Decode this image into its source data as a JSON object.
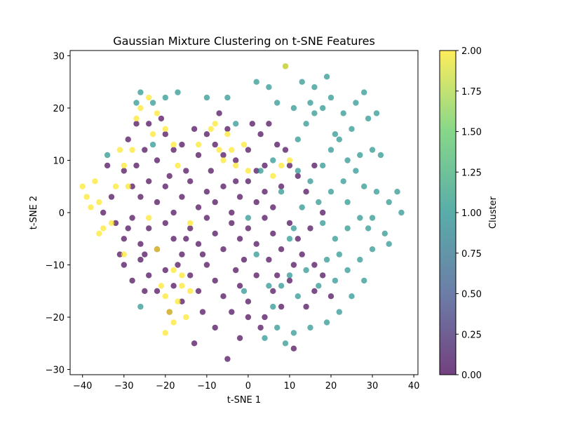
{
  "chart_data": {
    "type": "scatter",
    "title": "Gaussian Mixture Clustering on t-SNE Features",
    "xlabel": "t-SNE 1",
    "ylabel": "t-SNE 2",
    "xlim": [
      -43,
      41
    ],
    "ylim": [
      -31,
      31
    ],
    "xticks": [
      -40,
      -30,
      -20,
      -10,
      0,
      10,
      20,
      30,
      40
    ],
    "yticks": [
      -30,
      -20,
      -10,
      0,
      10,
      20,
      30
    ],
    "grid": false,
    "point_alpha": 0.7,
    "colorbar": {
      "label": "Cluster",
      "range": [
        0.0,
        2.0
      ],
      "ticks": [
        "0.00",
        "0.25",
        "0.50",
        "0.75",
        "1.00",
        "1.25",
        "1.50",
        "1.75",
        "2.00"
      ],
      "colormap": "viridis",
      "stops": [
        "#440154",
        "#3b528b",
        "#21918c",
        "#5ec962",
        "#fde725"
      ]
    },
    "series": [
      {
        "cluster": 0,
        "color": "#440154",
        "points": [
          [
            -29,
            14
          ],
          [
            -27,
            17
          ],
          [
            -25,
            12
          ],
          [
            -22,
            10
          ],
          [
            -20,
            15
          ],
          [
            -18,
            12
          ],
          [
            -15,
            8
          ],
          [
            -12,
            11
          ],
          [
            -10,
            15
          ],
          [
            -8,
            13
          ],
          [
            -5,
            16
          ],
          [
            -3,
            10
          ],
          [
            0,
            12
          ],
          [
            3,
            15
          ],
          [
            5,
            17
          ],
          [
            7,
            13
          ],
          [
            10,
            9
          ],
          [
            12,
            7
          ],
          [
            -30,
            8
          ],
          [
            -28,
            5
          ],
          [
            -26,
            3
          ],
          [
            -24,
            6
          ],
          [
            -22,
            2
          ],
          [
            -20,
            5
          ],
          [
            -18,
            0
          ],
          [
            -16,
            3
          ],
          [
            -14,
            6
          ],
          [
            -12,
            1
          ],
          [
            -10,
            4
          ],
          [
            -8,
            2
          ],
          [
            -6,
            5
          ],
          [
            -4,
            0
          ],
          [
            -2,
            3
          ],
          [
            0,
            6
          ],
          [
            2,
            2
          ],
          [
            4,
            4
          ],
          [
            6,
            1
          ],
          [
            8,
            5
          ],
          [
            -32,
            -2
          ],
          [
            -30,
            -5
          ],
          [
            -28,
            -1
          ],
          [
            -26,
            -6
          ],
          [
            -24,
            -3
          ],
          [
            -22,
            -7
          ],
          [
            -20,
            -2
          ],
          [
            -18,
            -5
          ],
          [
            -16,
            -8
          ],
          [
            -14,
            -3
          ],
          [
            -12,
            -6
          ],
          [
            -10,
            -1
          ],
          [
            -8,
            -4
          ],
          [
            -6,
            -7
          ],
          [
            -4,
            -2
          ],
          [
            -2,
            -5
          ],
          [
            0,
            -3
          ],
          [
            2,
            -6
          ],
          [
            4,
            -1
          ],
          [
            6,
            -4
          ],
          [
            8,
            -7
          ],
          [
            10,
            -2
          ],
          [
            12,
            -5
          ],
          [
            -30,
            -10
          ],
          [
            -28,
            -13
          ],
          [
            -26,
            -9
          ],
          [
            -24,
            -12
          ],
          [
            -22,
            -15
          ],
          [
            -20,
            -11
          ],
          [
            -18,
            -14
          ],
          [
            -16,
            -17
          ],
          [
            -14,
            -12
          ],
          [
            -12,
            -15
          ],
          [
            -10,
            -10
          ],
          [
            -8,
            -13
          ],
          [
            -6,
            -16
          ],
          [
            -4,
            -19
          ],
          [
            -2,
            -14
          ],
          [
            0,
            -17
          ],
          [
            2,
            -12
          ],
          [
            4,
            -20
          ],
          [
            6,
            -15
          ],
          [
            8,
            -18
          ],
          [
            10,
            -13
          ],
          [
            -25,
            -15
          ],
          [
            -8,
            -22
          ],
          [
            -5,
            -28
          ],
          [
            -13,
            -25
          ],
          [
            -2,
            -24
          ],
          [
            0,
            -20
          ],
          [
            3,
            -22
          ],
          [
            11,
            -26
          ],
          [
            14,
            -18
          ],
          [
            16,
            -15
          ],
          [
            18,
            -12
          ],
          [
            20,
            -16
          ],
          [
            16,
            -10
          ],
          [
            13,
            -8
          ],
          [
            15,
            -3
          ],
          [
            18,
            0
          ],
          [
            14,
            4
          ],
          [
            16,
            9
          ],
          [
            -34,
            9
          ],
          [
            -33,
            3
          ],
          [
            -31,
            -8
          ],
          [
            -29,
            -3
          ],
          [
            -27,
            9
          ],
          [
            -25,
            -8
          ],
          [
            -21,
            18
          ],
          [
            -19,
            7
          ],
          [
            -17,
            -10
          ],
          [
            -13,
            16
          ],
          [
            -11,
            -8
          ],
          [
            -9,
            8
          ],
          [
            -7,
            19
          ],
          [
            -3,
            -11
          ],
          [
            1,
            17
          ],
          [
            5,
            -9
          ],
          [
            9,
            12
          ],
          [
            11,
            -10
          ],
          [
            -35,
            0
          ],
          [
            -24,
            17
          ],
          [
            -16,
            13
          ],
          [
            -6,
            11
          ],
          [
            2,
            8
          ],
          [
            7,
            -12
          ],
          [
            -19,
            -19
          ],
          [
            -11,
            -19
          ],
          [
            -1,
            -9
          ],
          [
            4,
            9
          ],
          [
            -15,
            -5
          ],
          [
            -3,
            6
          ]
        ]
      },
      {
        "cluster": 1,
        "color": "#21918c",
        "points": [
          [
            9,
            28
          ],
          [
            2,
            25
          ],
          [
            5,
            24
          ],
          [
            13,
            25
          ],
          [
            16,
            24
          ],
          [
            19,
            26
          ],
          [
            -27,
            21
          ],
          [
            -26,
            23
          ],
          [
            -23,
            21
          ],
          [
            -20,
            22
          ],
          [
            -17,
            23
          ],
          [
            -10,
            22
          ],
          [
            -5,
            22
          ],
          [
            7,
            21
          ],
          [
            11,
            20
          ],
          [
            15,
            21
          ],
          [
            18,
            20
          ],
          [
            20,
            22
          ],
          [
            23,
            19
          ],
          [
            26,
            21
          ],
          [
            28,
            23
          ],
          [
            29,
            18
          ],
          [
            31,
            19
          ],
          [
            25,
            16
          ],
          [
            22,
            14
          ],
          [
            20,
            12
          ],
          [
            24,
            10
          ],
          [
            27,
            11
          ],
          [
            30,
            12
          ],
          [
            32,
            11
          ],
          [
            26,
            8
          ],
          [
            23,
            6
          ],
          [
            20,
            4
          ],
          [
            17,
            2
          ],
          [
            24,
            2
          ],
          [
            28,
            5
          ],
          [
            31,
            4
          ],
          [
            34,
            2
          ],
          [
            37,
            0
          ],
          [
            36,
            4
          ],
          [
            27,
            -1
          ],
          [
            24,
            -3
          ],
          [
            21,
            -5
          ],
          [
            18,
            -2
          ],
          [
            29,
            -3
          ],
          [
            33,
            -4
          ],
          [
            34,
            -6
          ],
          [
            30,
            -7
          ],
          [
            27,
            -9
          ],
          [
            24,
            -11
          ],
          [
            21,
            -13
          ],
          [
            28,
            -13
          ],
          [
            25,
            -16
          ],
          [
            22,
            -19
          ],
          [
            19,
            -21
          ],
          [
            15,
            -22
          ],
          [
            11,
            -23
          ],
          [
            7,
            -22
          ],
          [
            4,
            -24
          ],
          [
            9,
            -25
          ],
          [
            6,
            -18
          ],
          [
            8,
            -14
          ],
          [
            10,
            -12
          ],
          [
            12,
            -16
          ],
          [
            14,
            -11
          ],
          [
            17,
            -14
          ],
          [
            19,
            -9
          ],
          [
            22,
            -8
          ],
          [
            11,
            -3
          ],
          [
            13,
            1
          ],
          [
            15,
            6
          ],
          [
            18,
            9
          ],
          [
            21,
            15
          ],
          [
            12,
            14
          ],
          [
            14,
            17
          ],
          [
            16,
            19
          ],
          [
            -34,
            11
          ],
          [
            -26,
            -18
          ],
          [
            -23,
            13
          ],
          [
            0,
            -1
          ],
          [
            3,
            8
          ],
          [
            6,
            10
          ],
          [
            5,
            -14
          ],
          [
            2,
            -8
          ],
          [
            -3,
            17
          ],
          [
            -1,
            -15
          ],
          [
            8,
            4
          ],
          [
            10,
            -5
          ],
          [
            12,
            8
          ],
          [
            30,
            -1
          ]
        ]
      },
      {
        "cluster": 2,
        "color": "#fde725",
        "points": [
          [
            -40,
            5
          ],
          [
            -39,
            3
          ],
          [
            -37,
            6
          ],
          [
            -36,
            2
          ],
          [
            -38,
            1
          ],
          [
            -35,
            -3
          ],
          [
            -36,
            -4
          ],
          [
            -33,
            -2
          ],
          [
            -31,
            12
          ],
          [
            -30,
            9
          ],
          [
            -29,
            5
          ],
          [
            -28,
            12
          ],
          [
            -27,
            18
          ],
          [
            -26,
            20
          ],
          [
            -24,
            22
          ],
          [
            -22,
            19
          ],
          [
            -20,
            16
          ],
          [
            -23,
            15
          ],
          [
            -18,
            13
          ],
          [
            -17,
            9
          ],
          [
            -21,
            -14
          ],
          [
            -20,
            -16
          ],
          [
            -19,
            -19
          ],
          [
            -18,
            -21
          ],
          [
            -17,
            -17
          ],
          [
            -16,
            -14
          ],
          [
            -15,
            -20
          ],
          [
            -14,
            -15
          ],
          [
            -20,
            -23
          ],
          [
            -18,
            -11
          ],
          [
            -6,
            10
          ],
          [
            -5,
            15
          ],
          [
            -4,
            12
          ],
          [
            -3,
            9
          ],
          [
            -8,
            17
          ],
          [
            -7,
            12
          ],
          [
            -1,
            13
          ],
          [
            0,
            8
          ],
          [
            6,
            7
          ],
          [
            8,
            9
          ],
          [
            10,
            10
          ],
          [
            9,
            28
          ],
          [
            -12,
            13
          ],
          [
            -9,
            16
          ],
          [
            -24,
            -1
          ],
          [
            -22,
            -7
          ],
          [
            -14,
            -2
          ],
          [
            -30,
            -8
          ],
          [
            -16,
            -12
          ],
          [
            -32,
            5
          ]
        ]
      }
    ]
  }
}
